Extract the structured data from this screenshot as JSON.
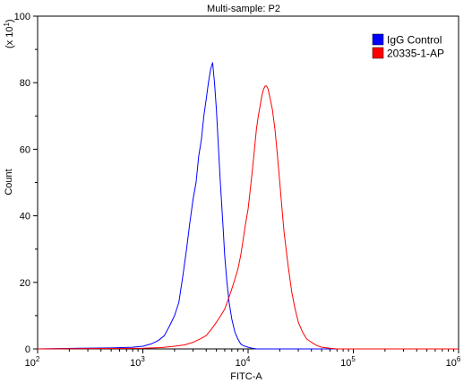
{
  "chart_data": {
    "type": "line",
    "title": "Multi-sample: P2",
    "xlabel": "FITC-A",
    "ylabel": "Count",
    "y_multiplier_label": "(x 10",
    "y_multiplier_exp": "1",
    "x_scale": "log",
    "xlim": [
      100,
      1000000
    ],
    "ylim": [
      0,
      100
    ],
    "grid": false,
    "legend_position": "top-right",
    "x_ticks": [
      {
        "base": "10",
        "exp": "2",
        "value": 100
      },
      {
        "base": "10",
        "exp": "3",
        "value": 1000
      },
      {
        "base": "10",
        "exp": "4",
        "value": 10000
      },
      {
        "base": "10",
        "exp": "5",
        "value": 100000
      },
      {
        "base": "10",
        "exp": "6",
        "value": 1000000
      }
    ],
    "y_ticks": [
      "0",
      "20",
      "40",
      "60",
      "80",
      "100"
    ],
    "series": [
      {
        "name": "IgG Control",
        "color": "#0000ff",
        "x": [
          100,
          250,
          500,
          800,
          1000,
          1200,
          1400,
          1600,
          1800,
          2000,
          2200,
          2400,
          2600,
          2800,
          3000,
          3200,
          3400,
          3600,
          3800,
          4000,
          4200,
          4400,
          4600,
          4800,
          5000,
          5200,
          5400,
          5600,
          5800,
          6000,
          6300,
          6600,
          7000,
          7500,
          8000,
          8500,
          9000,
          10000,
          11000,
          12000,
          20000,
          1000000
        ],
        "y": [
          0,
          0.2,
          0.3,
          0.5,
          0.8,
          1.5,
          2.5,
          4,
          7,
          10,
          14,
          22,
          30,
          38,
          45,
          50,
          58,
          63,
          70,
          75,
          80,
          84,
          86,
          80,
          72,
          62,
          52,
          44,
          36,
          28,
          20,
          14,
          9,
          5,
          3,
          1.5,
          1,
          0.5,
          0.2,
          0,
          0,
          0
        ]
      },
      {
        "name": "20335-1-AP",
        "color": "#ff0000",
        "x": [
          100,
          1000,
          1500,
          2000,
          2500,
          3000,
          3500,
          4000,
          4500,
          5000,
          5500,
          6000,
          6500,
          7000,
          7500,
          8000,
          8500,
          9000,
          9500,
          10000,
          10500,
          11000,
          11500,
          12000,
          12500,
          13000,
          13500,
          14000,
          14500,
          15000,
          15500,
          16000,
          17000,
          18000,
          19000,
          20000,
          21000,
          22000,
          24000,
          26000,
          28000,
          30000,
          33000,
          36000,
          40000,
          45000,
          50000,
          60000,
          70000,
          1000000
        ],
        "y": [
          0,
          0.2,
          0.4,
          0.8,
          1.2,
          2,
          3,
          4,
          6,
          8,
          10,
          12,
          15,
          18,
          21,
          24,
          28,
          33,
          38,
          42,
          48,
          54,
          60,
          66,
          70,
          73,
          76,
          78,
          79,
          79,
          78,
          76,
          72,
          66,
          58,
          50,
          42,
          35,
          25,
          17,
          12,
          8,
          5,
          3,
          2,
          1,
          0.5,
          0.2,
          0,
          0
        ]
      }
    ]
  }
}
